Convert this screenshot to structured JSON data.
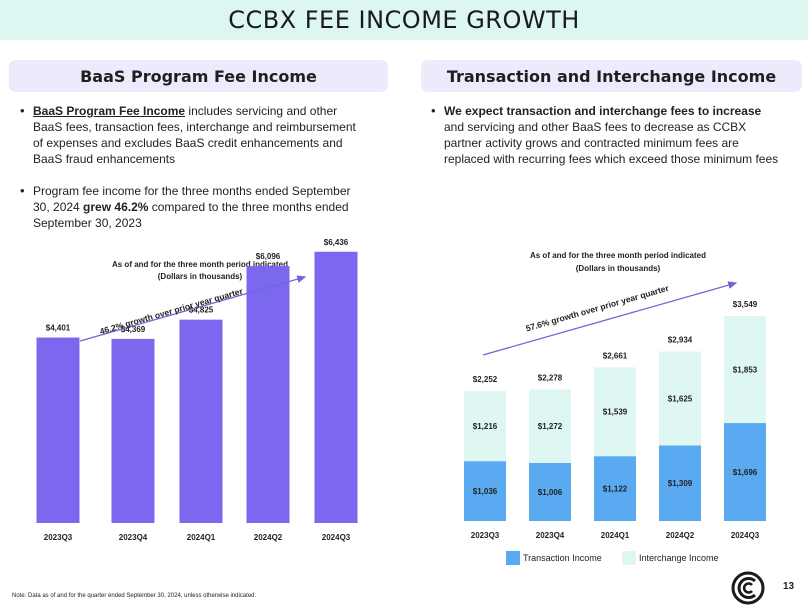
{
  "title": "CCBX FEE INCOME GROWTH",
  "left": {
    "header": "BaaS Program Fee Income",
    "bullet1": {
      "lead": "BaaS Program Fee Income",
      "rest": " includes servicing and other BaaS fees, transaction fees, interchange and reimbursement of expenses and excludes BaaS credit enhancements and BaaS fraud enhancements"
    },
    "bullet2": {
      "pre": "Program fee income for the three months ended September 30, 2024 ",
      "bold": "grew 46.2%",
      "post": " compared to the three months ended September 30, 2023"
    }
  },
  "right": {
    "header": "Transaction and Interchange Income",
    "bullet1": {
      "bold": "We expect transaction and interchange fees to increase",
      "rest": " and servicing and other BaaS fees to decrease as CCBX partner activity grows and contracted minimum fees are replaced with recurring fees which exceed those minimum fees"
    }
  },
  "footnote": "Note:  Data as of and for the quarter ended September 30, 2024, unless otherwise indicated.",
  "page_number": "13",
  "logo": "ccb-logo-icon",
  "colors": {
    "title_bg": "#dcf6f1",
    "header_bg": "#ecebfb",
    "bar_purple": "#7b68ee",
    "transaction_blue": "#5aaaf2",
    "interchange_mint": "#dff7f2",
    "arrow": "#6f66d6"
  },
  "chart_data": [
    {
      "type": "bar",
      "title": "As of and for the three month period indicated",
      "subtitle": "(Dollars in thousands)",
      "categories": [
        "2023Q3",
        "2023Q4",
        "2024Q1",
        "2024Q2",
        "2024Q3"
      ],
      "values": [
        4401,
        4369,
        4825,
        6096,
        6436
      ],
      "labels": [
        "$4,401",
        "$4,369",
        "$4,825",
        "$6,096",
        "$6,436"
      ],
      "annotation": "46.2% growth over prior year quarter",
      "ylim": [
        0,
        7000
      ]
    },
    {
      "type": "bar",
      "stacked": true,
      "title": "As of and for the three month period indicated",
      "subtitle": "(Dollars in thousands)",
      "categories": [
        "2023Q3",
        "2023Q4",
        "2024Q1",
        "2024Q2",
        "2024Q3"
      ],
      "series": [
        {
          "name": "Transaction Income",
          "values": [
            1036,
            1006,
            1122,
            1309,
            1696
          ],
          "labels": [
            "$1,036",
            "$1,006",
            "$1,122",
            "$1,309",
            "$1,696"
          ]
        },
        {
          "name": "Interchange Income",
          "values": [
            1216,
            1272,
            1539,
            1625,
            1853
          ],
          "labels": [
            "$1,216",
            "$1,272",
            "$1,539",
            "$1,625",
            "$1,853"
          ]
        }
      ],
      "totals": [
        2252,
        2278,
        2661,
        2934,
        3549
      ],
      "total_labels": [
        "$2,252",
        "$2,278",
        "$2,661",
        "$2,934",
        "$3,549"
      ],
      "annotation": "57.6% growth over prior year quarter",
      "legend": "bottom",
      "ylim": [
        0,
        3600
      ]
    }
  ]
}
